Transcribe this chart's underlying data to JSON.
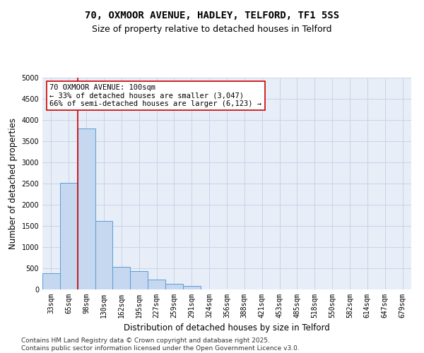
{
  "title_line1": "70, OXMOOR AVENUE, HADLEY, TELFORD, TF1 5SS",
  "title_line2": "Size of property relative to detached houses in Telford",
  "xlabel": "Distribution of detached houses by size in Telford",
  "ylabel": "Number of detached properties",
  "categories": [
    "33sqm",
    "65sqm",
    "98sqm",
    "130sqm",
    "162sqm",
    "195sqm",
    "227sqm",
    "259sqm",
    "291sqm",
    "324sqm",
    "356sqm",
    "388sqm",
    "421sqm",
    "453sqm",
    "485sqm",
    "518sqm",
    "550sqm",
    "582sqm",
    "614sqm",
    "647sqm",
    "679sqm"
  ],
  "values": [
    380,
    2520,
    3800,
    1620,
    540,
    430,
    230,
    130,
    80,
    0,
    0,
    0,
    0,
    0,
    0,
    0,
    0,
    0,
    0,
    0,
    0
  ],
  "bar_color": "#c5d8f0",
  "bar_edge_color": "#5b9bd5",
  "vline_color": "#cc0000",
  "annotation_text": "70 OXMOOR AVENUE: 100sqm\n← 33% of detached houses are smaller (3,047)\n66% of semi-detached houses are larger (6,123) →",
  "annotation_box_color": "#cc0000",
  "ylim": [
    0,
    5000
  ],
  "yticks": [
    0,
    500,
    1000,
    1500,
    2000,
    2500,
    3000,
    3500,
    4000,
    4500,
    5000
  ],
  "grid_color": "#c8d4e8",
  "background_color": "#e8eef8",
  "footer_text": "Contains HM Land Registry data © Crown copyright and database right 2025.\nContains public sector information licensed under the Open Government Licence v3.0.",
  "title_fontsize": 10,
  "subtitle_fontsize": 9,
  "axis_label_fontsize": 8.5,
  "tick_fontsize": 7,
  "footer_fontsize": 6.5,
  "ann_fontsize": 7.5
}
